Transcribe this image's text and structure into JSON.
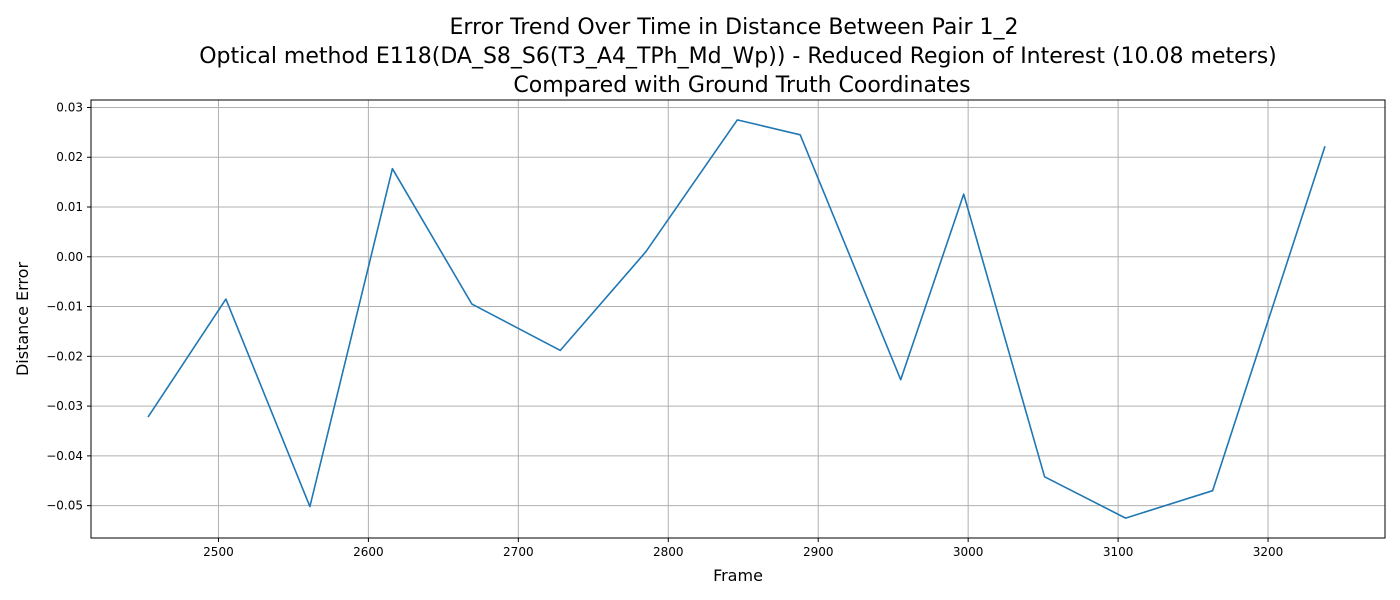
{
  "chart_data": {
    "type": "line",
    "title_lines": [
      "Error Trend Over Time in Distance Between Pair 1_2",
      "Optical method E118(DA_S8_S6(T3_A4_TPh_Md_Wp)) - Reduced Region of Interest (10.08 meters)",
      "Compared with Ground Truth Coordinates"
    ],
    "xlabel": "Frame",
    "ylabel": "Distance Error",
    "xlim": [
      2415,
      3278
    ],
    "ylim": [
      -0.0565,
      0.0315
    ],
    "xticks": [
      2500,
      2600,
      2700,
      2800,
      2900,
      3000,
      3100,
      3200
    ],
    "yticks": [
      -0.05,
      -0.04,
      -0.03,
      -0.02,
      -0.01,
      0.0,
      0.01,
      0.02,
      0.03
    ],
    "xtick_labels": [
      "2500",
      "2600",
      "2700",
      "2800",
      "2900",
      "3000",
      "3100",
      "3200"
    ],
    "ytick_labels": [
      "−0.05",
      "−0.04",
      "−0.03",
      "−0.02",
      "−0.01",
      "0.00",
      "0.01",
      "0.02",
      "0.03"
    ],
    "grid": true,
    "color": "#1f77b4",
    "series": [
      {
        "x": [
          2453,
          2505,
          2561,
          2616,
          2669,
          2728,
          2785,
          2846,
          2888,
          2955,
          2997,
          3051,
          3105,
          3163,
          3238
        ],
        "y": [
          -0.0322,
          -0.0085,
          -0.0502,
          0.0177,
          -0.0095,
          -0.0188,
          0.001,
          0.0275,
          0.0245,
          -0.0247,
          0.0126,
          -0.0442,
          -0.0525,
          -0.047,
          0.0222
        ]
      }
    ]
  }
}
